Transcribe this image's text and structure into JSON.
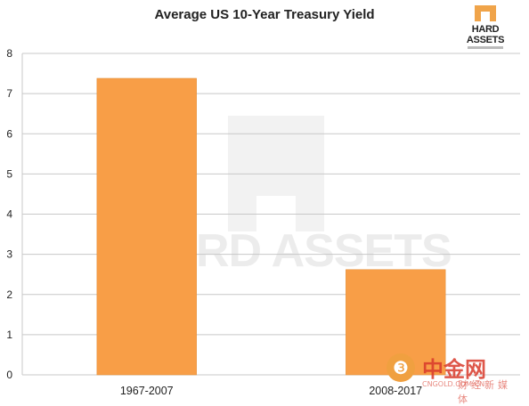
{
  "chart_data": {
    "type": "bar",
    "title": "Average US 10-Year Treasury Yield",
    "categories": [
      "1967-2007",
      "2008-2017"
    ],
    "values": [
      7.38,
      2.62
    ],
    "xlabel": "",
    "ylabel": "",
    "ylim": [
      0,
      8
    ],
    "yticks": [
      "0",
      "1",
      "2",
      "3",
      "4",
      "5",
      "6",
      "7",
      "8"
    ],
    "grid": true,
    "legend": "none",
    "bar_color": "#f89e47",
    "grid_color": "#c8c8c8"
  },
  "branding": {
    "logo_text": "HARD ASSETS",
    "watermark_text": "RD ASSETS",
    "cn_logo_name": "中金网",
    "cn_logo_url": "CNGOLD.COM.CN",
    "cn_logo_tagline": "财经新媒体",
    "cn_icon_glyph": "❸"
  }
}
